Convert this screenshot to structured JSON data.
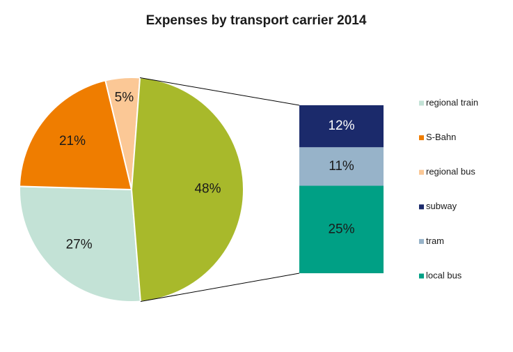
{
  "chart_data": {
    "type": "pie",
    "title": "Expenses by transport carrier 2014",
    "pie": {
      "categories": [
        "regional train",
        "S-Bahn",
        "regional bus",
        null
      ],
      "values": [
        27,
        21,
        5,
        48
      ],
      "value_labels": [
        "27%",
        "21%",
        "5%",
        "48%"
      ],
      "colors": [
        "#c3e2d6",
        "#ef7d00",
        "#fbc896",
        "#a8b92b"
      ]
    },
    "bar": {
      "categories": [
        "subway",
        "tram",
        "local bus"
      ],
      "values": [
        12,
        11,
        25
      ],
      "value_labels": [
        "12%",
        "11%",
        "25%"
      ],
      "colors": [
        "#1b2a6b",
        "#97b3c9",
        "#00a085"
      ]
    },
    "legend": "right"
  }
}
